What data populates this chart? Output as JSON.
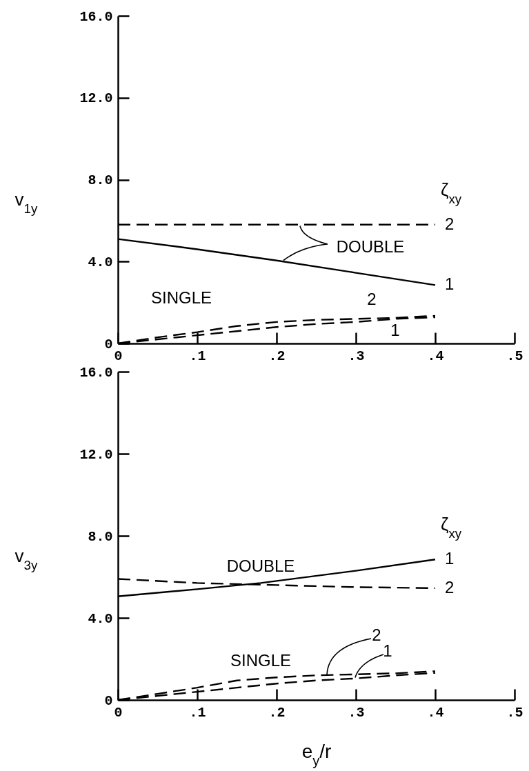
{
  "chart_data": [
    {
      "type": "line",
      "ylabel": "v$_{1y}$",
      "legend_title": "ζ$_{xy}$",
      "xlim": [
        0,
        0.5
      ],
      "xticks": [
        0,
        {
          "value": 0.1,
          "label": ".1"
        },
        {
          "value": 0.2,
          "label": ".2"
        },
        {
          "value": 0.3,
          "label": ".3"
        },
        {
          "value": 0.4,
          "label": ".4"
        },
        {
          "value": 0.5,
          "label": ".5"
        }
      ],
      "ylim": [
        0,
        16
      ],
      "yticks": [
        0,
        {
          "value": 4,
          "label": "4.0"
        },
        {
          "value": 8,
          "label": "8.0"
        },
        {
          "value": 12,
          "label": "12.0"
        },
        {
          "value": 16,
          "label": "16.0"
        }
      ],
      "series": [
        {
          "name": "2",
          "color": "#000000",
          "line_style": "dashed",
          "x": [
            0,
            0.1,
            0.2,
            0.3,
            0.4
          ],
          "values": [
            5.8,
            5.8,
            5.8,
            5.8,
            5.8
          ]
        },
        {
          "name": "1",
          "color": "#000000",
          "line_style": "solid",
          "x": [
            0,
            0.1,
            0.2,
            0.3,
            0.4
          ],
          "values": [
            5.1,
            4.6,
            4.05,
            3.45,
            2.85
          ]
        },
        {
          "color": "#000000",
          "line_style": "dashed",
          "x": [
            0,
            0.05,
            0.1,
            0.15,
            0.2,
            0.25,
            0.3,
            0.35,
            0.4
          ],
          "values": [
            0,
            0.3,
            0.55,
            0.85,
            1.05,
            1.15,
            1.2,
            1.25,
            1.35
          ]
        },
        {
          "color": "#000000",
          "line_style": "dashed",
          "x": [
            0,
            0.05,
            0.1,
            0.15,
            0.2,
            0.25,
            0.3,
            0.35,
            0.4
          ],
          "values": [
            0,
            0.2,
            0.4,
            0.6,
            0.8,
            0.95,
            1.05,
            1.2,
            1.28
          ]
        }
      ],
      "annotations": [
        "DOUBLE",
        "SINGLE",
        "2",
        "1"
      ]
    },
    {
      "type": "line",
      "xlabel": "e$_{y}$/r",
      "ylabel": "v$_{3y}$",
      "legend_title": "ζ$_{xy}$",
      "xlim": [
        0,
        0.5
      ],
      "xticks": [
        0,
        {
          "value": 0.1,
          "label": ".1"
        },
        {
          "value": 0.2,
          "label": ".2"
        },
        {
          "value": 0.3,
          "label": ".3"
        },
        {
          "value": 0.4,
          "label": ".4"
        },
        {
          "value": 0.5,
          "label": ".5"
        }
      ],
      "ylim": [
        0,
        16
      ],
      "yticks": [
        0,
        {
          "value": 4,
          "label": "4.0"
        },
        {
          "value": 8,
          "label": "8.0"
        },
        {
          "value": 12,
          "label": "12.0"
        },
        {
          "value": 16,
          "label": "16.0"
        }
      ],
      "series": [
        {
          "name": "1",
          "color": "#000000",
          "line_style": "solid",
          "x": [
            0,
            0.1,
            0.18,
            0.3,
            0.4
          ],
          "values": [
            5.05,
            5.4,
            5.7,
            6.3,
            6.85
          ]
        },
        {
          "name": "2",
          "color": "#000000",
          "line_style": "dashed",
          "x": [
            0,
            0.1,
            0.2,
            0.3,
            0.4
          ],
          "values": [
            5.9,
            5.7,
            5.6,
            5.5,
            5.45
          ]
        },
        {
          "color": "#000000",
          "line_style": "dashed",
          "x": [
            0,
            0.05,
            0.1,
            0.15,
            0.2,
            0.25,
            0.3,
            0.35,
            0.4
          ],
          "values": [
            0,
            0.3,
            0.6,
            0.95,
            1.1,
            1.2,
            1.25,
            1.3,
            1.4
          ]
        },
        {
          "color": "#000000",
          "line_style": "dashed",
          "x": [
            0,
            0.05,
            0.1,
            0.15,
            0.2,
            0.25,
            0.3,
            0.35,
            0.4
          ],
          "values": [
            0,
            0.2,
            0.4,
            0.6,
            0.8,
            0.95,
            1.05,
            1.2,
            1.32
          ]
        }
      ],
      "annotations": [
        "DOUBLE",
        "SINGLE",
        "2",
        "1"
      ]
    }
  ]
}
